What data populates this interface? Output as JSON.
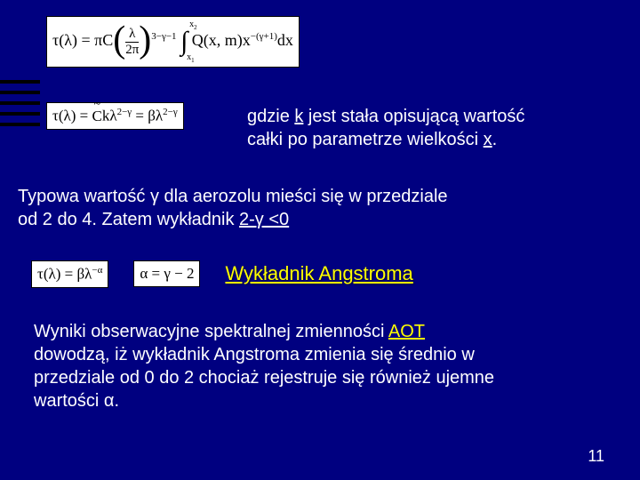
{
  "colors": {
    "background": "#000080",
    "text": "#ffffff",
    "highlight": "#ffff00",
    "formula_bg": "#ffffff",
    "formula_text": "#000000"
  },
  "fonts": {
    "body_family": "Arial",
    "body_size_pt": 20,
    "formula_family": "Times New Roman"
  },
  "formulas": {
    "f1_latex": "τ(λ) = πC(λ/2π)^{3-γ-1} ∫_{x₁}^{x₂} Q(x,m)x^{-(γ+1)}dx",
    "f2_latex": "τ(λ) = C̃kλ^{2-γ} = βλ^{2-γ}",
    "f3_latex": "τ(λ) = βλ^{-α}",
    "f4_latex": "α = γ - 2"
  },
  "text1": {
    "line1_a": "gdzie ",
    "k": "k",
    "line1_b": " jest stała opisującą wartość",
    "line2_a": "całki po parametrze wielkości ",
    "x": "x",
    "line2_b": "."
  },
  "text2": {
    "line1": "Typowa wartość γ dla aerozolu mieści się w przedziale",
    "line2_a": "od 2 do 4. Zatem wykładnik ",
    "expr": "2-γ <0"
  },
  "angstrom": "Wykładnik Angstroma",
  "text3": {
    "l1a": "Wyniki obserwacyjne spektralnej zmienności ",
    "aot": "AOT",
    "l2": "dowodzą, iż wykładnik Angstroma zmienia się średnio w",
    "l3": "przedziale od 0 do 2 chociaż rejestruje się również ujemne",
    "l4": "wartości α."
  },
  "page_number": "11"
}
